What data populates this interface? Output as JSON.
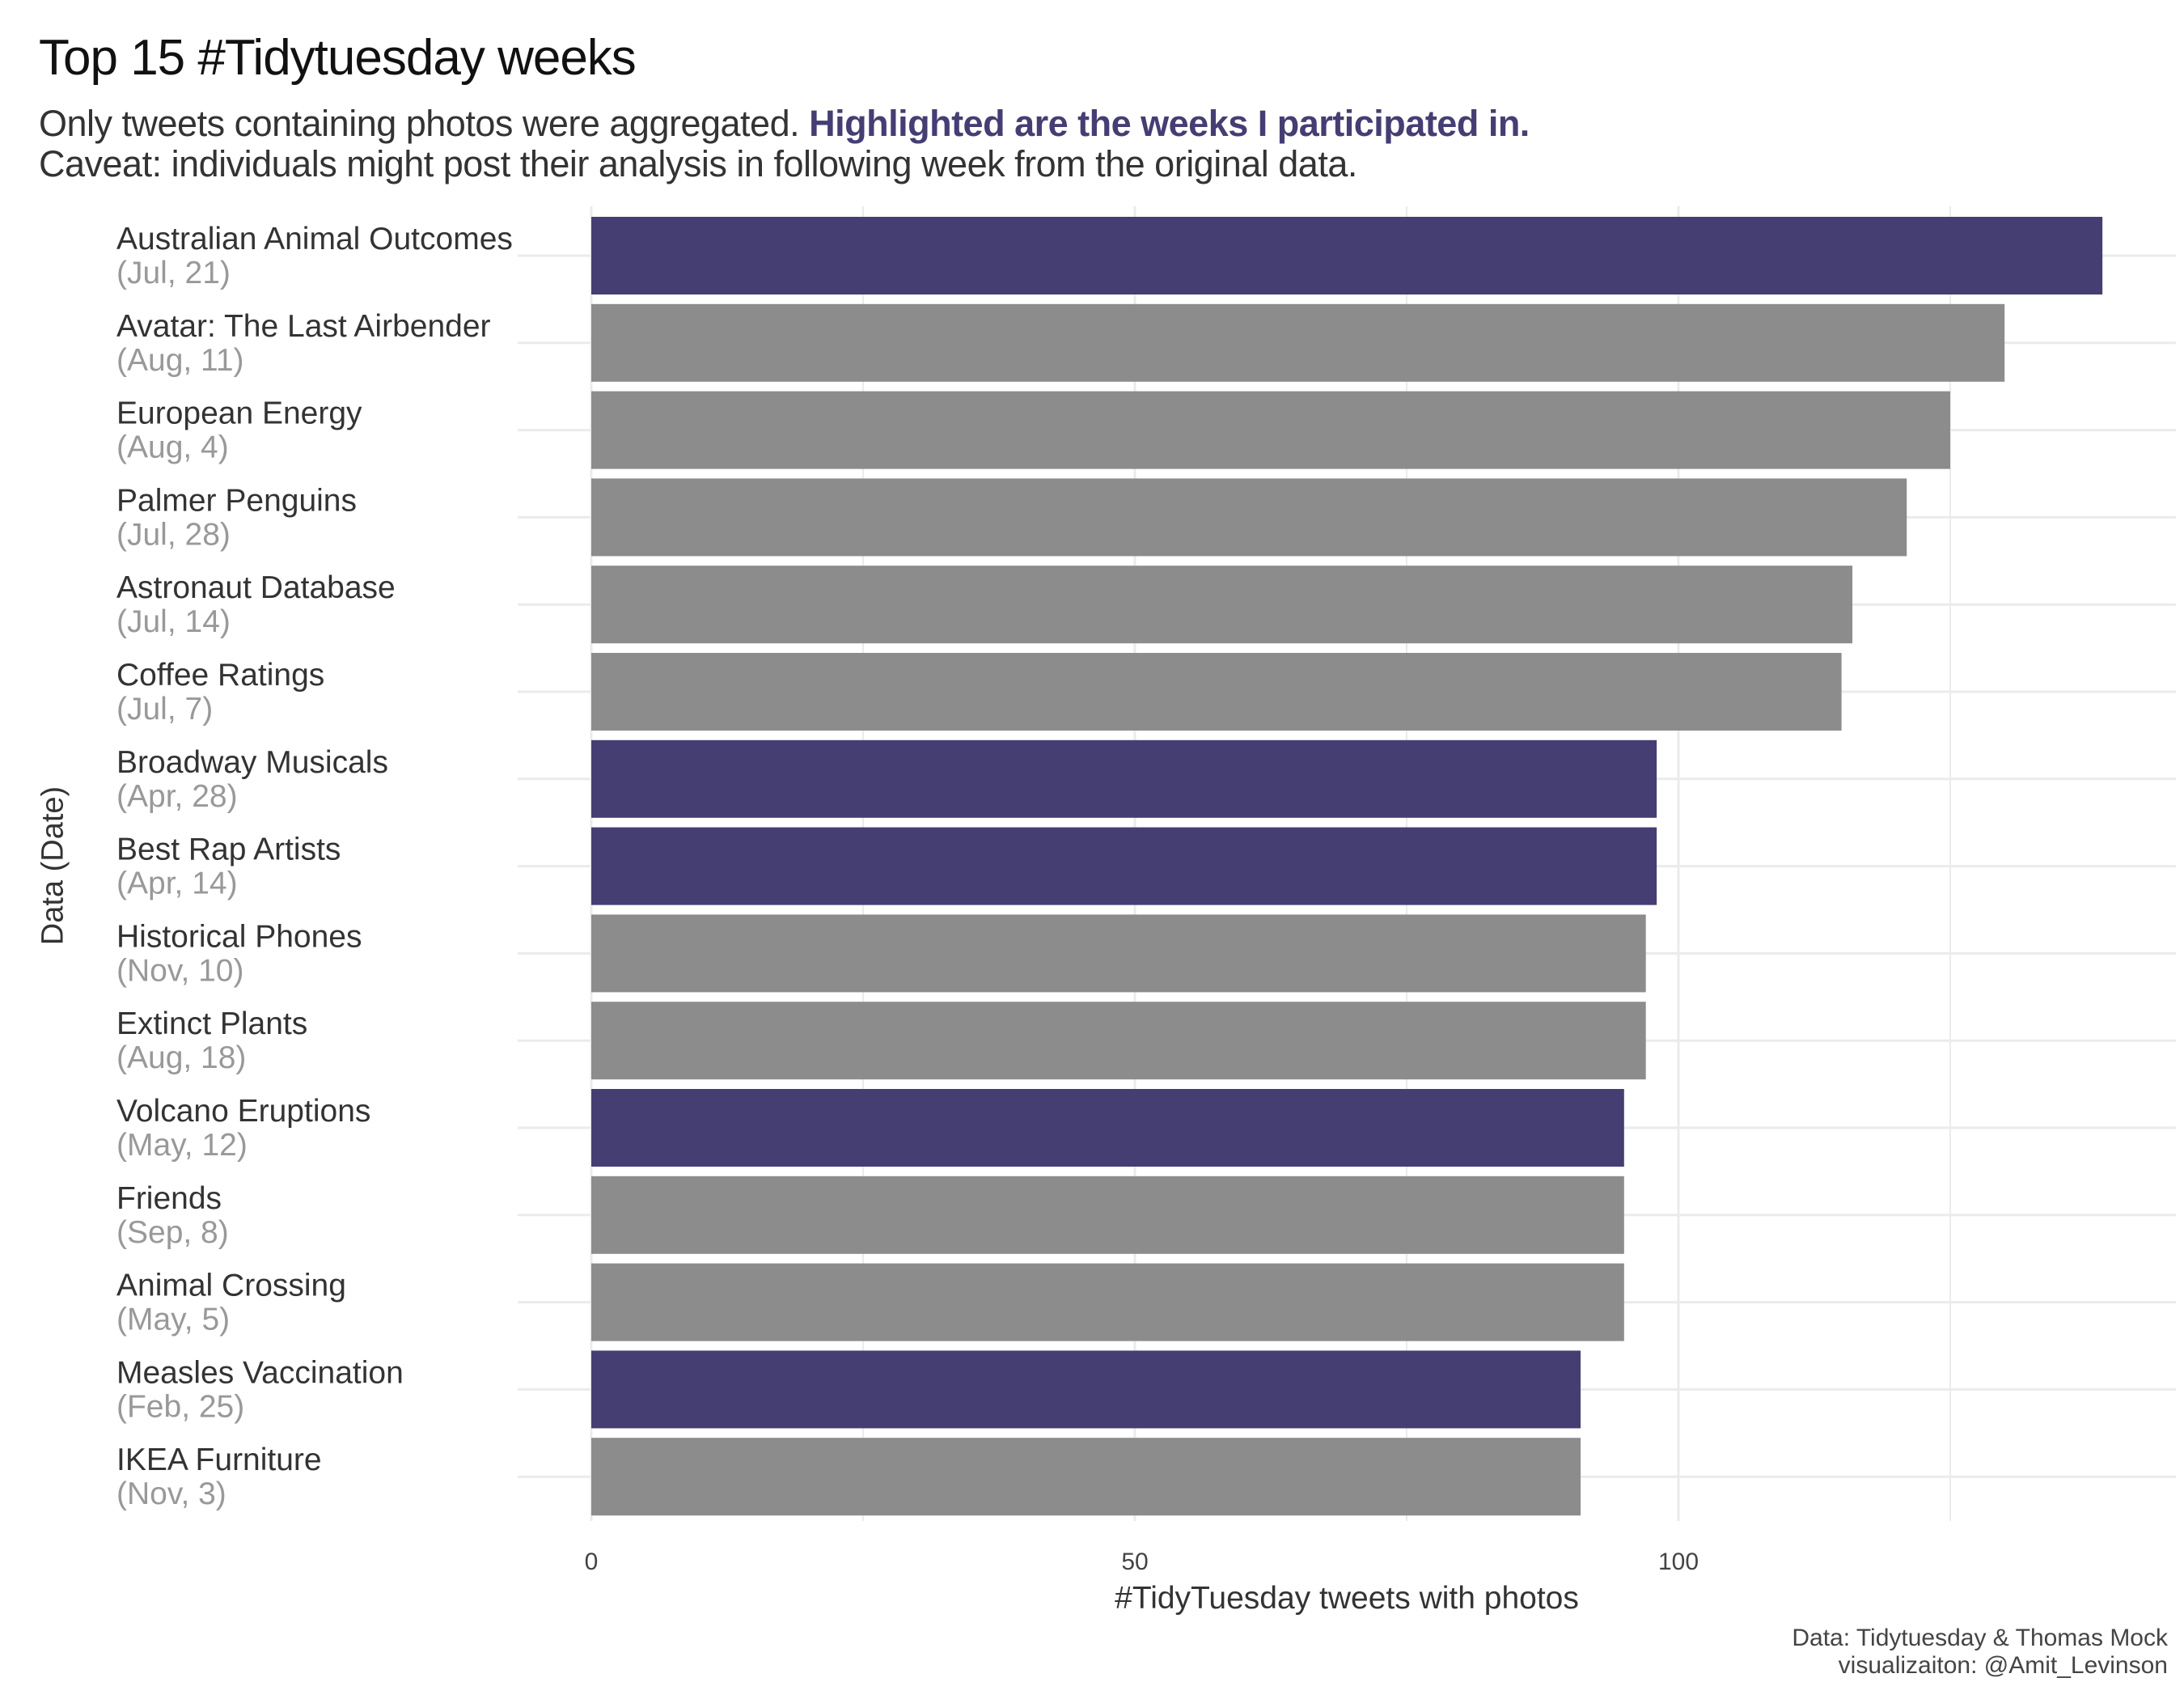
{
  "title": "Top 15 #Tidytuesday weeks",
  "subtitle_plain": "Only tweets containing photos were aggregated. ",
  "subtitle_highlight": "Highlighted are the weeks I participated in.",
  "subtitle_line2": "Caveat: individuals might post their analysis in following week from the original data.",
  "caption_line1": "Data: Tidytuesday & Thomas Mock",
  "caption_line2": "visualizaiton: @Amit_Levinson",
  "colors": {
    "highlight": "#453e73",
    "other": "#8c8c8c",
    "grid": "#ebebeb",
    "date": "#999999",
    "label": "#333333"
  },
  "chart_data": {
    "type": "bar",
    "orientation": "horizontal",
    "xlabel": "#TidyTuesday tweets with photos",
    "ylabel": "Data (Date)",
    "xlim": [
      0,
      146
    ],
    "xticks": [
      0,
      50,
      100
    ],
    "grid": true,
    "categories": [
      {
        "name": "Australian Animal Outcomes",
        "date": "(Jul, 21)",
        "value": 139,
        "highlighted": true
      },
      {
        "name": "Avatar: The Last Airbender",
        "date": "(Aug, 11)",
        "value": 130,
        "highlighted": false
      },
      {
        "name": "European Energy",
        "date": "(Aug, 4)",
        "value": 125,
        "highlighted": false
      },
      {
        "name": "Palmer Penguins",
        "date": "(Jul, 28)",
        "value": 121,
        "highlighted": false
      },
      {
        "name": "Astronaut Database",
        "date": "(Jul, 14)",
        "value": 116,
        "highlighted": false
      },
      {
        "name": "Coffee Ratings",
        "date": "(Jul, 7)",
        "value": 115,
        "highlighted": false
      },
      {
        "name": "Broadway Musicals",
        "date": "(Apr, 28)",
        "value": 98,
        "highlighted": true
      },
      {
        "name": "Best Rap Artists",
        "date": "(Apr, 14)",
        "value": 98,
        "highlighted": true
      },
      {
        "name": "Historical Phones",
        "date": "(Nov, 10)",
        "value": 97,
        "highlighted": false
      },
      {
        "name": "Extinct Plants",
        "date": "(Aug, 18)",
        "value": 97,
        "highlighted": false
      },
      {
        "name": "Volcano Eruptions",
        "date": "(May, 12)",
        "value": 95,
        "highlighted": true
      },
      {
        "name": "Friends",
        "date": "(Sep, 8)",
        "value": 95,
        "highlighted": false
      },
      {
        "name": "Animal Crossing",
        "date": "(May, 5)",
        "value": 95,
        "highlighted": false
      },
      {
        "name": "Measles Vaccination",
        "date": "(Feb, 25)",
        "value": 91,
        "highlighted": true
      },
      {
        "name": "IKEA Furniture",
        "date": "(Nov, 3)",
        "value": 91,
        "highlighted": false
      }
    ]
  }
}
